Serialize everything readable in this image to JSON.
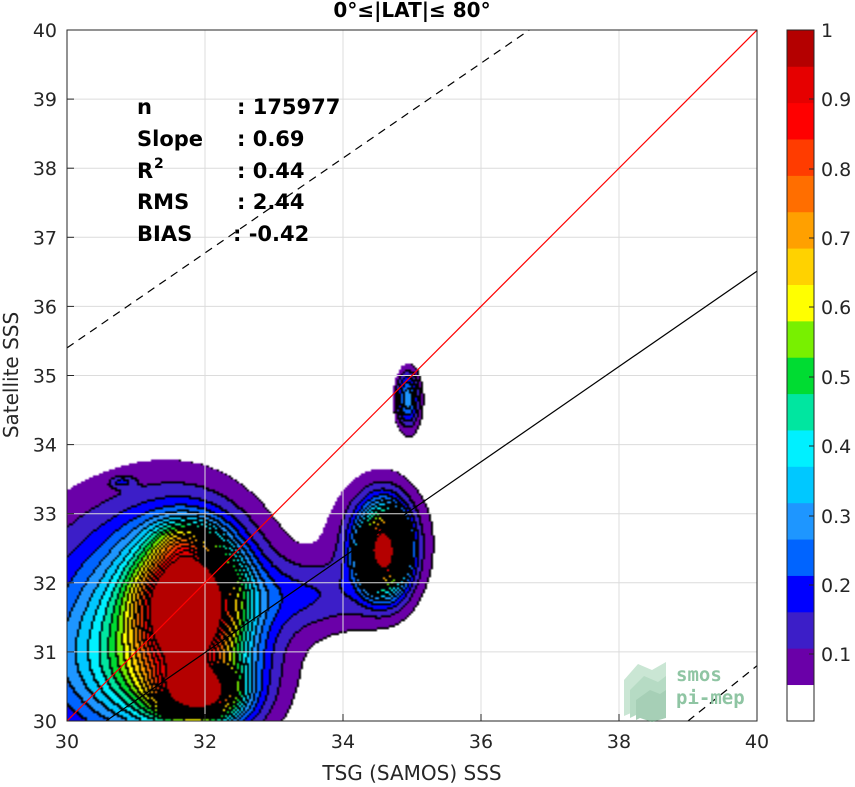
{
  "chart_data": {
    "type": "heatmap",
    "title": "0°≤|LAT|≤ 80°",
    "xlabel": "TSG (SAMOS) SSS",
    "ylabel": "Satellite SSS",
    "xlim": [
      30,
      40
    ],
    "ylim": [
      30,
      40
    ],
    "xticks": [
      "30",
      "32",
      "34",
      "36",
      "38",
      "40"
    ],
    "yticks": [
      "30",
      "31",
      "32",
      "33",
      "34",
      "35",
      "36",
      "37",
      "38",
      "39",
      "40"
    ],
    "grid": true,
    "stats": [
      {
        "label": "n",
        "value": ": 175977"
      },
      {
        "label": "Slope",
        "value": ": 0.69"
      },
      {
        "label": "R",
        "sup": "2",
        "value": ": 0.44"
      },
      {
        "label": "RMS",
        "value": ": 2.44"
      },
      {
        "label": "BIAS",
        "value": ": -0.42"
      }
    ],
    "lines": [
      {
        "name": "identity",
        "color": "#ff0000",
        "style": "solid",
        "points": [
          [
            30,
            30
          ],
          [
            40,
            40
          ]
        ]
      },
      {
        "name": "fit",
        "color": "#000000",
        "style": "solid",
        "points": [
          [
            30,
            29.61
          ],
          [
            40,
            36.51
          ]
        ]
      },
      {
        "name": "upper-bound",
        "color": "#000000",
        "style": "dashed",
        "points": [
          [
            30,
            35.4
          ],
          [
            36.7,
            40
          ]
        ]
      },
      {
        "name": "lower-bound",
        "color": "#000000",
        "style": "dashed",
        "points": [
          [
            39,
            30
          ],
          [
            40,
            30.8
          ]
        ]
      }
    ],
    "density_peaks": [
      {
        "x": 31.8,
        "y": 31.75,
        "sx": 0.45,
        "sy": 0.55,
        "a": 0.95
      },
      {
        "x": 31.65,
        "y": 31.6,
        "sx": 0.75,
        "sy": 0.95,
        "a": 0.3
      },
      {
        "x": 31.95,
        "y": 30.4,
        "sx": 0.35,
        "sy": 0.25,
        "a": 0.7
      },
      {
        "x": 31.75,
        "y": 30.55,
        "sx": 0.65,
        "sy": 0.55,
        "a": 0.35
      },
      {
        "x": 31.0,
        "y": 31.6,
        "sx": 1.2,
        "sy": 1.1,
        "a": 0.22
      },
      {
        "x": 30.5,
        "y": 30.6,
        "sx": 0.9,
        "sy": 0.8,
        "a": 0.15
      },
      {
        "x": 31.7,
        "y": 32.6,
        "sx": 0.3,
        "sy": 0.2,
        "a": 0.18
      },
      {
        "x": 34.6,
        "y": 32.45,
        "sx": 0.22,
        "sy": 0.38,
        "a": 0.95
      },
      {
        "x": 34.55,
        "y": 32.6,
        "sx": 0.45,
        "sy": 0.6,
        "a": 0.2
      },
      {
        "x": 33.5,
        "y": 31.8,
        "sx": 0.7,
        "sy": 0.35,
        "a": 0.12
      },
      {
        "x": 34.95,
        "y": 34.65,
        "sx": 0.12,
        "sy": 0.28,
        "a": 0.3
      },
      {
        "x": 30.8,
        "y": 33.45,
        "sx": 0.12,
        "sy": 0.06,
        "a": 0.1
      }
    ],
    "colorbar": {
      "ticks": [
        "0.1",
        "0.2",
        "0.3",
        "0.4",
        "0.5",
        "0.6",
        "0.7",
        "0.8",
        "0.9",
        "1"
      ],
      "colors": [
        "#ffffff",
        "#6a00a8",
        "#3c1ec8",
        "#0000ff",
        "#0064ff",
        "#1e96ff",
        "#00c8ff",
        "#00f0ff",
        "#00e6a0",
        "#00dc32",
        "#78f000",
        "#ffff00",
        "#ffd200",
        "#ffa000",
        "#ff6e00",
        "#ff3c00",
        "#ff0000",
        "#e60000",
        "#b40000"
      ]
    }
  },
  "logo": {
    "line1": "smos",
    "line2": "pi-mep"
  }
}
